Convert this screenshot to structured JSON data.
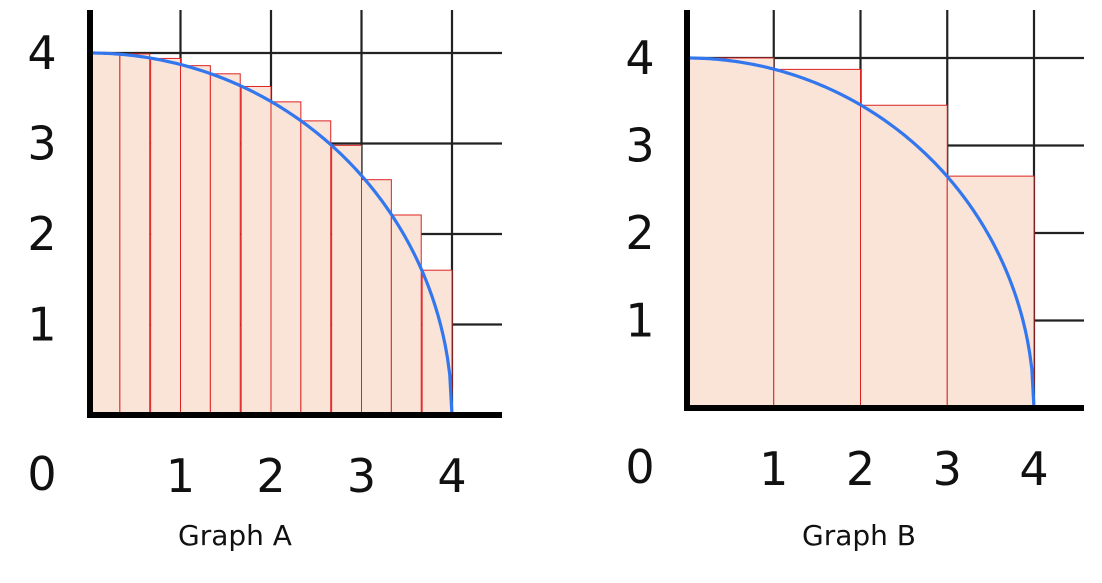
{
  "colors": {
    "rect_fill": "#fae3d7",
    "rect_stroke": "#dd2222",
    "curve": "#3377ee",
    "grid": "#222222",
    "axis": "#000000",
    "text": "#111111"
  },
  "chart_data": [
    {
      "type": "bar",
      "title": "Graph A",
      "xlim": [
        0,
        4
      ],
      "ylim": [
        0,
        4
      ],
      "grid": true,
      "origin_label": "0",
      "xticks": [
        "1",
        "2",
        "3",
        "4"
      ],
      "yticks": [
        "1",
        "2",
        "3",
        "4"
      ],
      "rect_width": 0.33,
      "rect_x": [
        0,
        0.33,
        0.67,
        1,
        1.33,
        1.67,
        2,
        2.33,
        2.67,
        3,
        3.33,
        3.67
      ],
      "rect_heights": [
        4,
        3.99,
        3.94,
        3.86,
        3.77,
        3.63,
        3.46,
        3.25,
        2.98,
        2.6,
        2.21,
        1.6
      ],
      "curve": {
        "function": "sqrt(16 - x^2)",
        "domain": [
          0,
          4
        ]
      }
    },
    {
      "type": "bar",
      "title": "Graph B",
      "xlim": [
        0,
        4
      ],
      "ylim": [
        0,
        4
      ],
      "grid": true,
      "origin_label": "0",
      "xticks": [
        "1",
        "2",
        "3",
        "4"
      ],
      "yticks": [
        "1",
        "2",
        "3",
        "4"
      ],
      "rect_width": 1,
      "rect_x": [
        0,
        1,
        2,
        3
      ],
      "rect_heights": [
        4,
        3.87,
        3.46,
        2.65
      ],
      "curve": {
        "function": "sqrt(16 - x^2)",
        "domain": [
          0,
          4
        ]
      }
    }
  ]
}
